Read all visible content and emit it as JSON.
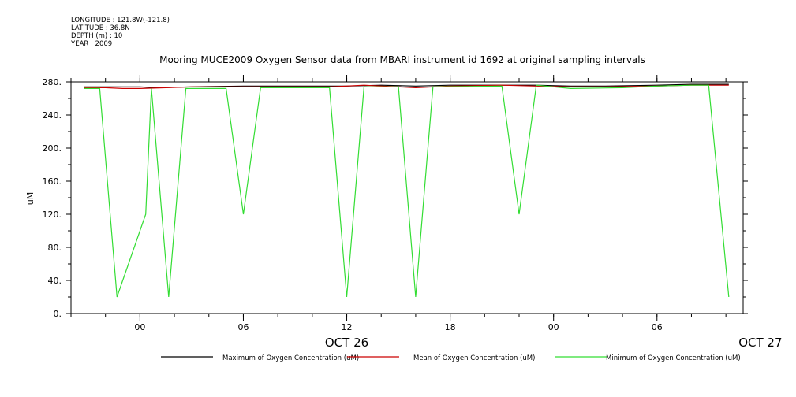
{
  "meta": {
    "longitude": "LONGITUDE : 121.8W(-121.8)",
    "latitude": "LATITUDE : 36.8N",
    "depth": "DEPTH (m) : 10",
    "year": "YEAR : 2009"
  },
  "chart_data": {
    "type": "line",
    "title": "Mooring MUCE2009 Oxygen Sensor data from MBARI instrument id 1692 at original sampling intervals",
    "ylabel": "uM",
    "xlabel": "",
    "ylim": [
      0,
      280
    ],
    "yticks": [
      "0.",
      "40.",
      "80.",
      "120.",
      "160.",
      "200.",
      "240.",
      "280."
    ],
    "xlim": [
      "2009-10-25T20:00",
      "2009-10-27T11:00"
    ],
    "xticks": [
      {
        "x": "2009-10-26T00:00",
        "label": "00"
      },
      {
        "x": "2009-10-26T06:00",
        "label": "06"
      },
      {
        "x": "2009-10-26T12:00",
        "label": "12"
      },
      {
        "x": "2009-10-26T18:00",
        "label": "18"
      },
      {
        "x": "2009-10-27T00:00",
        "label": "00"
      },
      {
        "x": "2009-10-27T06:00",
        "label": "06"
      }
    ],
    "date_labels": [
      {
        "x": "2009-10-26T12:00",
        "label": "OCT 26"
      },
      {
        "x": "2009-10-27T12:00",
        "label": "OCT 27"
      }
    ],
    "grid": false,
    "legend": "bottom",
    "series": [
      {
        "name": "Maximum of Oxygen Concentration (uM)",
        "color": "#000000",
        "points": [
          [
            "2009-10-25T20:45",
            274
          ],
          [
            "2009-10-26T00:00",
            274
          ],
          [
            "2009-10-26T01:00",
            273
          ],
          [
            "2009-10-26T03:00",
            274
          ],
          [
            "2009-10-26T06:00",
            275
          ],
          [
            "2009-10-26T09:00",
            275
          ],
          [
            "2009-10-26T12:00",
            275
          ],
          [
            "2009-10-26T14:00",
            276
          ],
          [
            "2009-10-26T16:00",
            275
          ],
          [
            "2009-10-26T18:00",
            276
          ],
          [
            "2009-10-26T21:00",
            276
          ],
          [
            "2009-10-26T23:00",
            276
          ],
          [
            "2009-10-27T01:00",
            275
          ],
          [
            "2009-10-27T03:00",
            275
          ],
          [
            "2009-10-27T06:00",
            276
          ],
          [
            "2009-10-27T08:00",
            277
          ],
          [
            "2009-10-27T10:10",
            277
          ]
        ]
      },
      {
        "name": "Mean of Oxygen Concentration (uM)",
        "color": "#cc0000",
        "points": [
          [
            "2009-10-25T20:45",
            273
          ],
          [
            "2009-10-25T22:00",
            273
          ],
          [
            "2009-10-25T23:00",
            272
          ],
          [
            "2009-10-26T00:00",
            272
          ],
          [
            "2009-10-26T01:30",
            273
          ],
          [
            "2009-10-26T03:00",
            274
          ],
          [
            "2009-10-26T06:00",
            274
          ],
          [
            "2009-10-26T09:00",
            274
          ],
          [
            "2009-10-26T11:00",
            274
          ],
          [
            "2009-10-26T13:00",
            276
          ],
          [
            "2009-10-26T15:00",
            274
          ],
          [
            "2009-10-26T16:00",
            273
          ],
          [
            "2009-10-26T18:00",
            275
          ],
          [
            "2009-10-26T21:00",
            276
          ],
          [
            "2009-10-26T23:00",
            275
          ],
          [
            "2009-10-27T01:00",
            274
          ],
          [
            "2009-10-27T03:00",
            274
          ],
          [
            "2009-10-27T06:00",
            275
          ],
          [
            "2009-10-27T08:00",
            276
          ],
          [
            "2009-10-27T10:10",
            276
          ]
        ]
      },
      {
        "name": "Minimum of Oxygen Concentration (uM)",
        "color": "#33dd33",
        "points": [
          [
            "2009-10-25T20:45",
            272
          ],
          [
            "2009-10-25T21:40",
            272
          ],
          [
            "2009-10-25T22:40",
            20
          ],
          [
            "2009-10-26T00:20",
            120
          ],
          [
            "2009-10-26T00:40",
            272
          ],
          [
            "2009-10-26T01:40",
            20
          ],
          [
            "2009-10-26T02:40",
            272
          ],
          [
            "2009-10-26T05:00",
            272
          ],
          [
            "2009-10-26T06:00",
            120
          ],
          [
            "2009-10-26T07:00",
            273
          ],
          [
            "2009-10-26T11:00",
            273
          ],
          [
            "2009-10-26T12:00",
            20
          ],
          [
            "2009-10-26T13:00",
            274
          ],
          [
            "2009-10-26T15:00",
            274
          ],
          [
            "2009-10-26T16:00",
            20
          ],
          [
            "2009-10-26T17:00",
            274
          ],
          [
            "2009-10-26T21:00",
            275
          ],
          [
            "2009-10-26T22:00",
            120
          ],
          [
            "2009-10-26T23:00",
            276
          ],
          [
            "2009-10-27T00:00",
            274
          ],
          [
            "2009-10-27T01:00",
            272
          ],
          [
            "2009-10-27T04:00",
            273
          ],
          [
            "2009-10-27T06:00",
            275
          ],
          [
            "2009-10-27T08:00",
            276
          ],
          [
            "2009-10-27T09:00",
            276
          ],
          [
            "2009-10-27T10:10",
            20
          ]
        ]
      }
    ]
  }
}
